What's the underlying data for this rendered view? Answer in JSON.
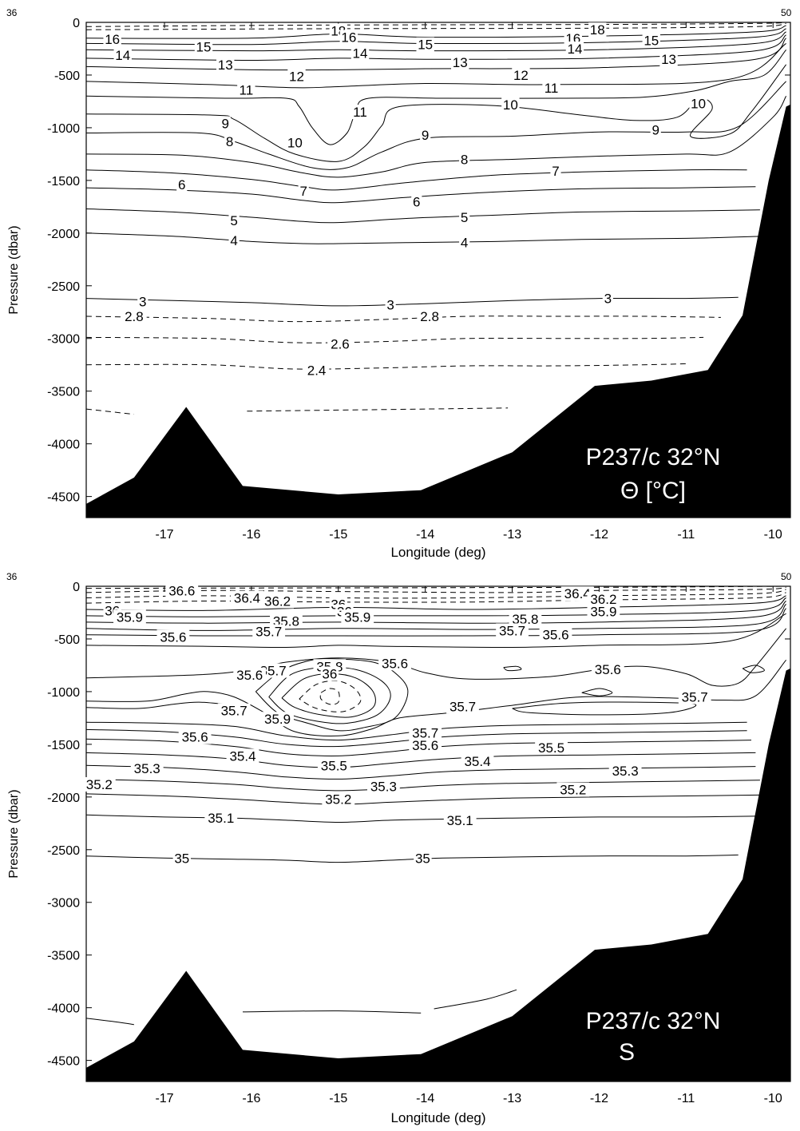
{
  "chart_data": [
    {
      "type": "contour",
      "name": "theta",
      "xlabel": "Longitude (deg)",
      "ylabel": "Pressure (dbar)",
      "xlim": [
        -17.9,
        -9.8
      ],
      "ylim": [
        -4700,
        0
      ],
      "x_ticks": [
        -17,
        -16,
        -15,
        -14,
        -13,
        -12,
        -11,
        -10
      ],
      "y_ticks": [
        0,
        -500,
        -1000,
        -1500,
        -2000,
        -2500,
        -3000,
        -3500,
        -4000,
        -4500
      ],
      "station_labels": [
        "36",
        "50"
      ],
      "panel_label_1": "P237/c  32°N",
      "panel_label_2": "Θ  [°C]",
      "colors": {
        "lines": "#000000",
        "bathymetry": "#000000",
        "background": "#ffffff"
      },
      "contour_levels": [
        18,
        16,
        15,
        14,
        13,
        12,
        11,
        10,
        9,
        8,
        7,
        6,
        5,
        4,
        3,
        2.8,
        2.6,
        2.4
      ],
      "contour_labels": [
        {
          "text": "18",
          "x": -15.0,
          "y": -80
        },
        {
          "text": "16",
          "x": -14.88,
          "y": -140
        },
        {
          "text": "16",
          "x": -17.6,
          "y": -160
        },
        {
          "text": "15",
          "x": -16.55,
          "y": -230
        },
        {
          "text": "14",
          "x": -17.48,
          "y": -310
        },
        {
          "text": "14",
          "x": -14.75,
          "y": -290
        },
        {
          "text": "15",
          "x": -14.0,
          "y": -210
        },
        {
          "text": "13",
          "x": -16.3,
          "y": -400
        },
        {
          "text": "13",
          "x": -13.6,
          "y": -380
        },
        {
          "text": "12",
          "x": -15.48,
          "y": -510
        },
        {
          "text": "12",
          "x": -12.9,
          "y": -500
        },
        {
          "text": "11",
          "x": -16.06,
          "y": -640
        },
        {
          "text": "11",
          "x": -12.55,
          "y": -620
        },
        {
          "text": "11",
          "x": -14.75,
          "y": -850
        },
        {
          "text": "10",
          "x": -13.02,
          "y": -780
        },
        {
          "text": "10",
          "x": -10.86,
          "y": -770
        },
        {
          "text": "18",
          "x": -12.02,
          "y": -70
        },
        {
          "text": "16",
          "x": -12.3,
          "y": -150
        },
        {
          "text": "14",
          "x": -12.28,
          "y": -250
        },
        {
          "text": "15",
          "x": -11.4,
          "y": -170
        },
        {
          "text": "13",
          "x": -11.2,
          "y": -350
        },
        {
          "text": "9",
          "x": -16.3,
          "y": -960
        },
        {
          "text": "8",
          "x": -16.25,
          "y": -1130
        },
        {
          "text": "10",
          "x": -15.5,
          "y": -1140
        },
        {
          "text": "9",
          "x": -14.0,
          "y": -1070
        },
        {
          "text": "9",
          "x": -11.35,
          "y": -1020
        },
        {
          "text": "8",
          "x": -13.55,
          "y": -1300
        },
        {
          "text": "7",
          "x": -15.4,
          "y": -1600
        },
        {
          "text": "7",
          "x": -12.5,
          "y": -1410
        },
        {
          "text": "6",
          "x": -16.8,
          "y": -1540
        },
        {
          "text": "6",
          "x": -14.1,
          "y": -1700
        },
        {
          "text": "5",
          "x": -16.2,
          "y": -1880
        },
        {
          "text": "5",
          "x": -13.55,
          "y": -1850
        },
        {
          "text": "4",
          "x": -16.2,
          "y": -2070
        },
        {
          "text": "4",
          "x": -13.55,
          "y": -2090
        },
        {
          "text": "3",
          "x": -17.25,
          "y": -2650
        },
        {
          "text": "3",
          "x": -14.4,
          "y": -2680
        },
        {
          "text": "3",
          "x": -11.9,
          "y": -2620
        },
        {
          "text": "2.8",
          "x": -17.35,
          "y": -2790
        },
        {
          "text": "2.8",
          "x": -13.95,
          "y": -2790
        },
        {
          "text": "2.6",
          "x": -14.98,
          "y": -3050
        },
        {
          "text": "2.4",
          "x": -15.25,
          "y": -3300
        }
      ]
    },
    {
      "type": "contour",
      "name": "salinity",
      "xlabel": "Longitude (deg)",
      "ylabel": "Pressure (dbar)",
      "xlim": [
        -17.9,
        -9.8
      ],
      "ylim": [
        -4700,
        0
      ],
      "x_ticks": [
        -17,
        -16,
        -15,
        -14,
        -13,
        -12,
        -11,
        -10
      ],
      "y_ticks": [
        0,
        -500,
        -1000,
        -1500,
        -2000,
        -2500,
        -3000,
        -3500,
        -4000,
        -4500
      ],
      "station_labels": [
        "36",
        "50"
      ],
      "panel_label_1": "P237/c  32°N",
      "panel_label_2": "S",
      "colors": {
        "lines": "#000000",
        "bathymetry": "#000000",
        "background": "#ffffff"
      },
      "contour_levels": [
        36.6,
        36.4,
        36.2,
        36,
        35.9,
        35.8,
        35.7,
        35.6,
        35.5,
        35.4,
        35.3,
        35.2,
        35.1,
        35
      ],
      "contour_labels": [
        {
          "text": "36.6",
          "x": -16.8,
          "y": -40
        },
        {
          "text": "36.4",
          "x": -16.05,
          "y": -110
        },
        {
          "text": "36.2",
          "x": -15.7,
          "y": -140
        },
        {
          "text": "36",
          "x": -15.0,
          "y": -170
        },
        {
          "text": "36.4",
          "x": -12.25,
          "y": -70
        },
        {
          "text": "36.2",
          "x": -11.95,
          "y": -120
        },
        {
          "text": "36",
          "x": -17.6,
          "y": -230
        },
        {
          "text": "35.9",
          "x": -17.4,
          "y": -290
        },
        {
          "text": "36",
          "x": -14.93,
          "y": -240
        },
        {
          "text": "35.9",
          "x": -14.78,
          "y": -290
        },
        {
          "text": "35.9",
          "x": -11.95,
          "y": -240
        },
        {
          "text": "35.8",
          "x": -15.6,
          "y": -330
        },
        {
          "text": "35.8",
          "x": -12.85,
          "y": -310
        },
        {
          "text": "35.7",
          "x": -15.8,
          "y": -430
        },
        {
          "text": "35.7",
          "x": -13.0,
          "y": -420
        },
        {
          "text": "35.6",
          "x": -12.5,
          "y": -460
        },
        {
          "text": "35.6",
          "x": -16.9,
          "y": -480
        },
        {
          "text": "35.8",
          "x": -15.1,
          "y": -760
        },
        {
          "text": "36",
          "x": -15.1,
          "y": -830
        },
        {
          "text": "35.7",
          "x": -15.75,
          "y": -800
        },
        {
          "text": "35.6",
          "x": -16.02,
          "y": -840
        },
        {
          "text": "35.6",
          "x": -14.35,
          "y": -730
        },
        {
          "text": "35.6",
          "x": -11.9,
          "y": -790
        },
        {
          "text": "35.7",
          "x": -16.2,
          "y": -1180
        },
        {
          "text": "35.9",
          "x": -15.7,
          "y": -1260
        },
        {
          "text": "35.7",
          "x": -13.57,
          "y": -1140
        },
        {
          "text": "35.7",
          "x": -10.9,
          "y": -1050
        },
        {
          "text": "35.7",
          "x": -14.0,
          "y": -1390
        },
        {
          "text": "35.6",
          "x": -16.65,
          "y": -1430
        },
        {
          "text": "35.6",
          "x": -14.0,
          "y": -1510
        },
        {
          "text": "35.5",
          "x": -15.05,
          "y": -1700
        },
        {
          "text": "35.5",
          "x": -12.55,
          "y": -1530
        },
        {
          "text": "35.4",
          "x": -16.1,
          "y": -1610
        },
        {
          "text": "35.4",
          "x": -13.4,
          "y": -1660
        },
        {
          "text": "35.3",
          "x": -17.2,
          "y": -1730
        },
        {
          "text": "35.3",
          "x": -14.48,
          "y": -1900
        },
        {
          "text": "35.3",
          "x": -11.7,
          "y": -1750
        },
        {
          "text": "35.2",
          "x": -17.75,
          "y": -1880
        },
        {
          "text": "35.2",
          "x": -15.0,
          "y": -2020
        },
        {
          "text": "35.2",
          "x": -12.3,
          "y": -1930
        },
        {
          "text": "35.1",
          "x": -16.35,
          "y": -2200
        },
        {
          "text": "35.1",
          "x": -13.6,
          "y": -2220
        },
        {
          "text": "35",
          "x": -16.8,
          "y": -2580
        },
        {
          "text": "35",
          "x": -14.03,
          "y": -2580
        }
      ]
    }
  ]
}
